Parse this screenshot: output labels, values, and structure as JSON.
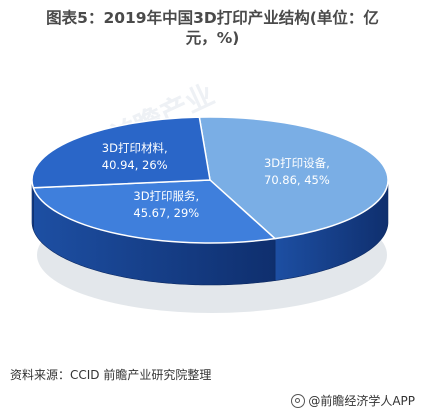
{
  "title": {
    "line1": "图表5：2019年中国3D打印产业结构(单位：亿",
    "line2": "元，%)"
  },
  "source": "资料来源：CCID 前瞻产业研究院整理",
  "brand": "@前瞻经济学人APP",
  "chart_data": {
    "type": "pie",
    "style": "3d",
    "slices": [
      {
        "label": "3D打印设备,",
        "value": 70.86,
        "pct_label": "70.86, 45%",
        "color": "#7aaee5"
      },
      {
        "label": "3D打印服务,",
        "value": 45.67,
        "pct_label": "45.67, 29%",
        "color": "#3f7fdc"
      },
      {
        "label": "3D打印材料,",
        "value": 40.94,
        "pct_label": "40.94, 26%",
        "color": "#2a66c8"
      }
    ]
  }
}
